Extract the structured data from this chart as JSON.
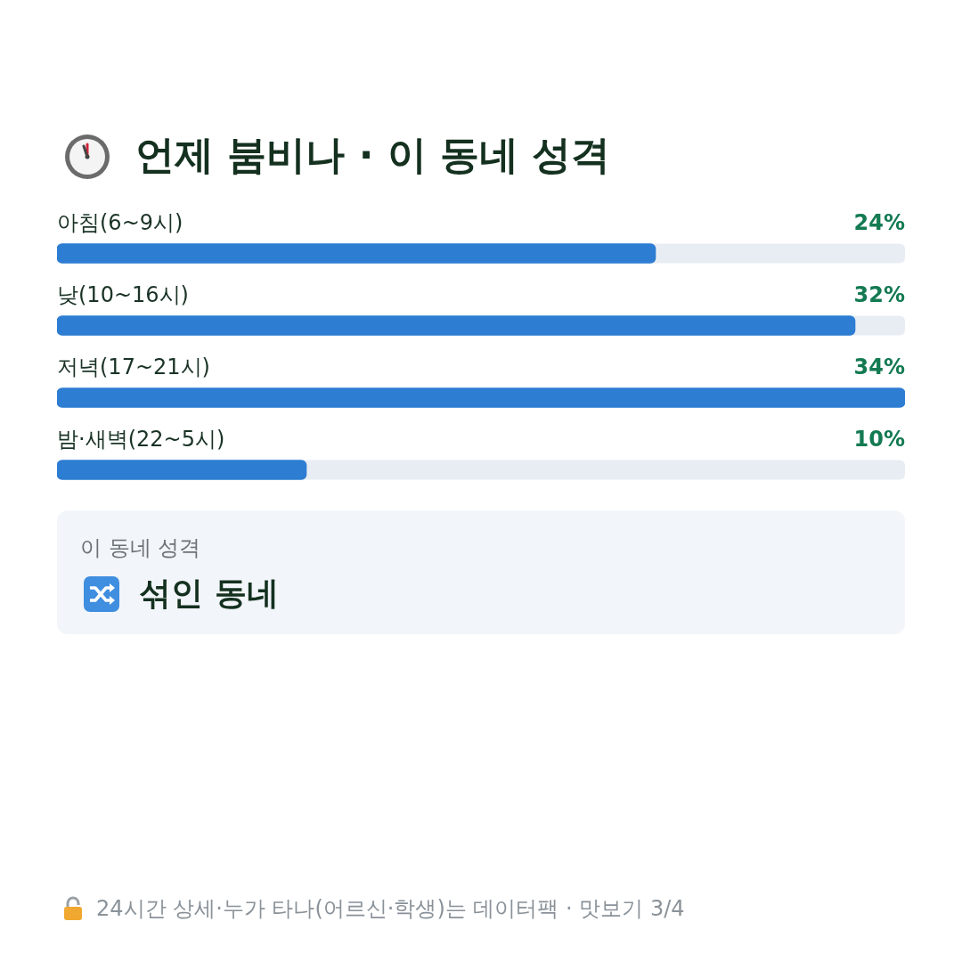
{
  "chart_data": {
    "type": "bar",
    "orientation": "horizontal",
    "title": "언제 붐비나 · 이 동네 성격",
    "categories": [
      "아침(6~9시)",
      "낮(10~16시)",
      "저녁(17~21시)",
      "밤·새벽(22~5시)"
    ],
    "values": [
      24,
      32,
      34,
      10
    ],
    "value_labels": [
      "24%",
      "32%",
      "34%",
      "10%"
    ],
    "color": "#2d7dd2",
    "annotations": [
      "이 동네 성격",
      "섞인 동네",
      "24시간 상세·누가 타나(어르신·학생)는 데이터팩 · 맛보기 3/4"
    ]
  }
}
